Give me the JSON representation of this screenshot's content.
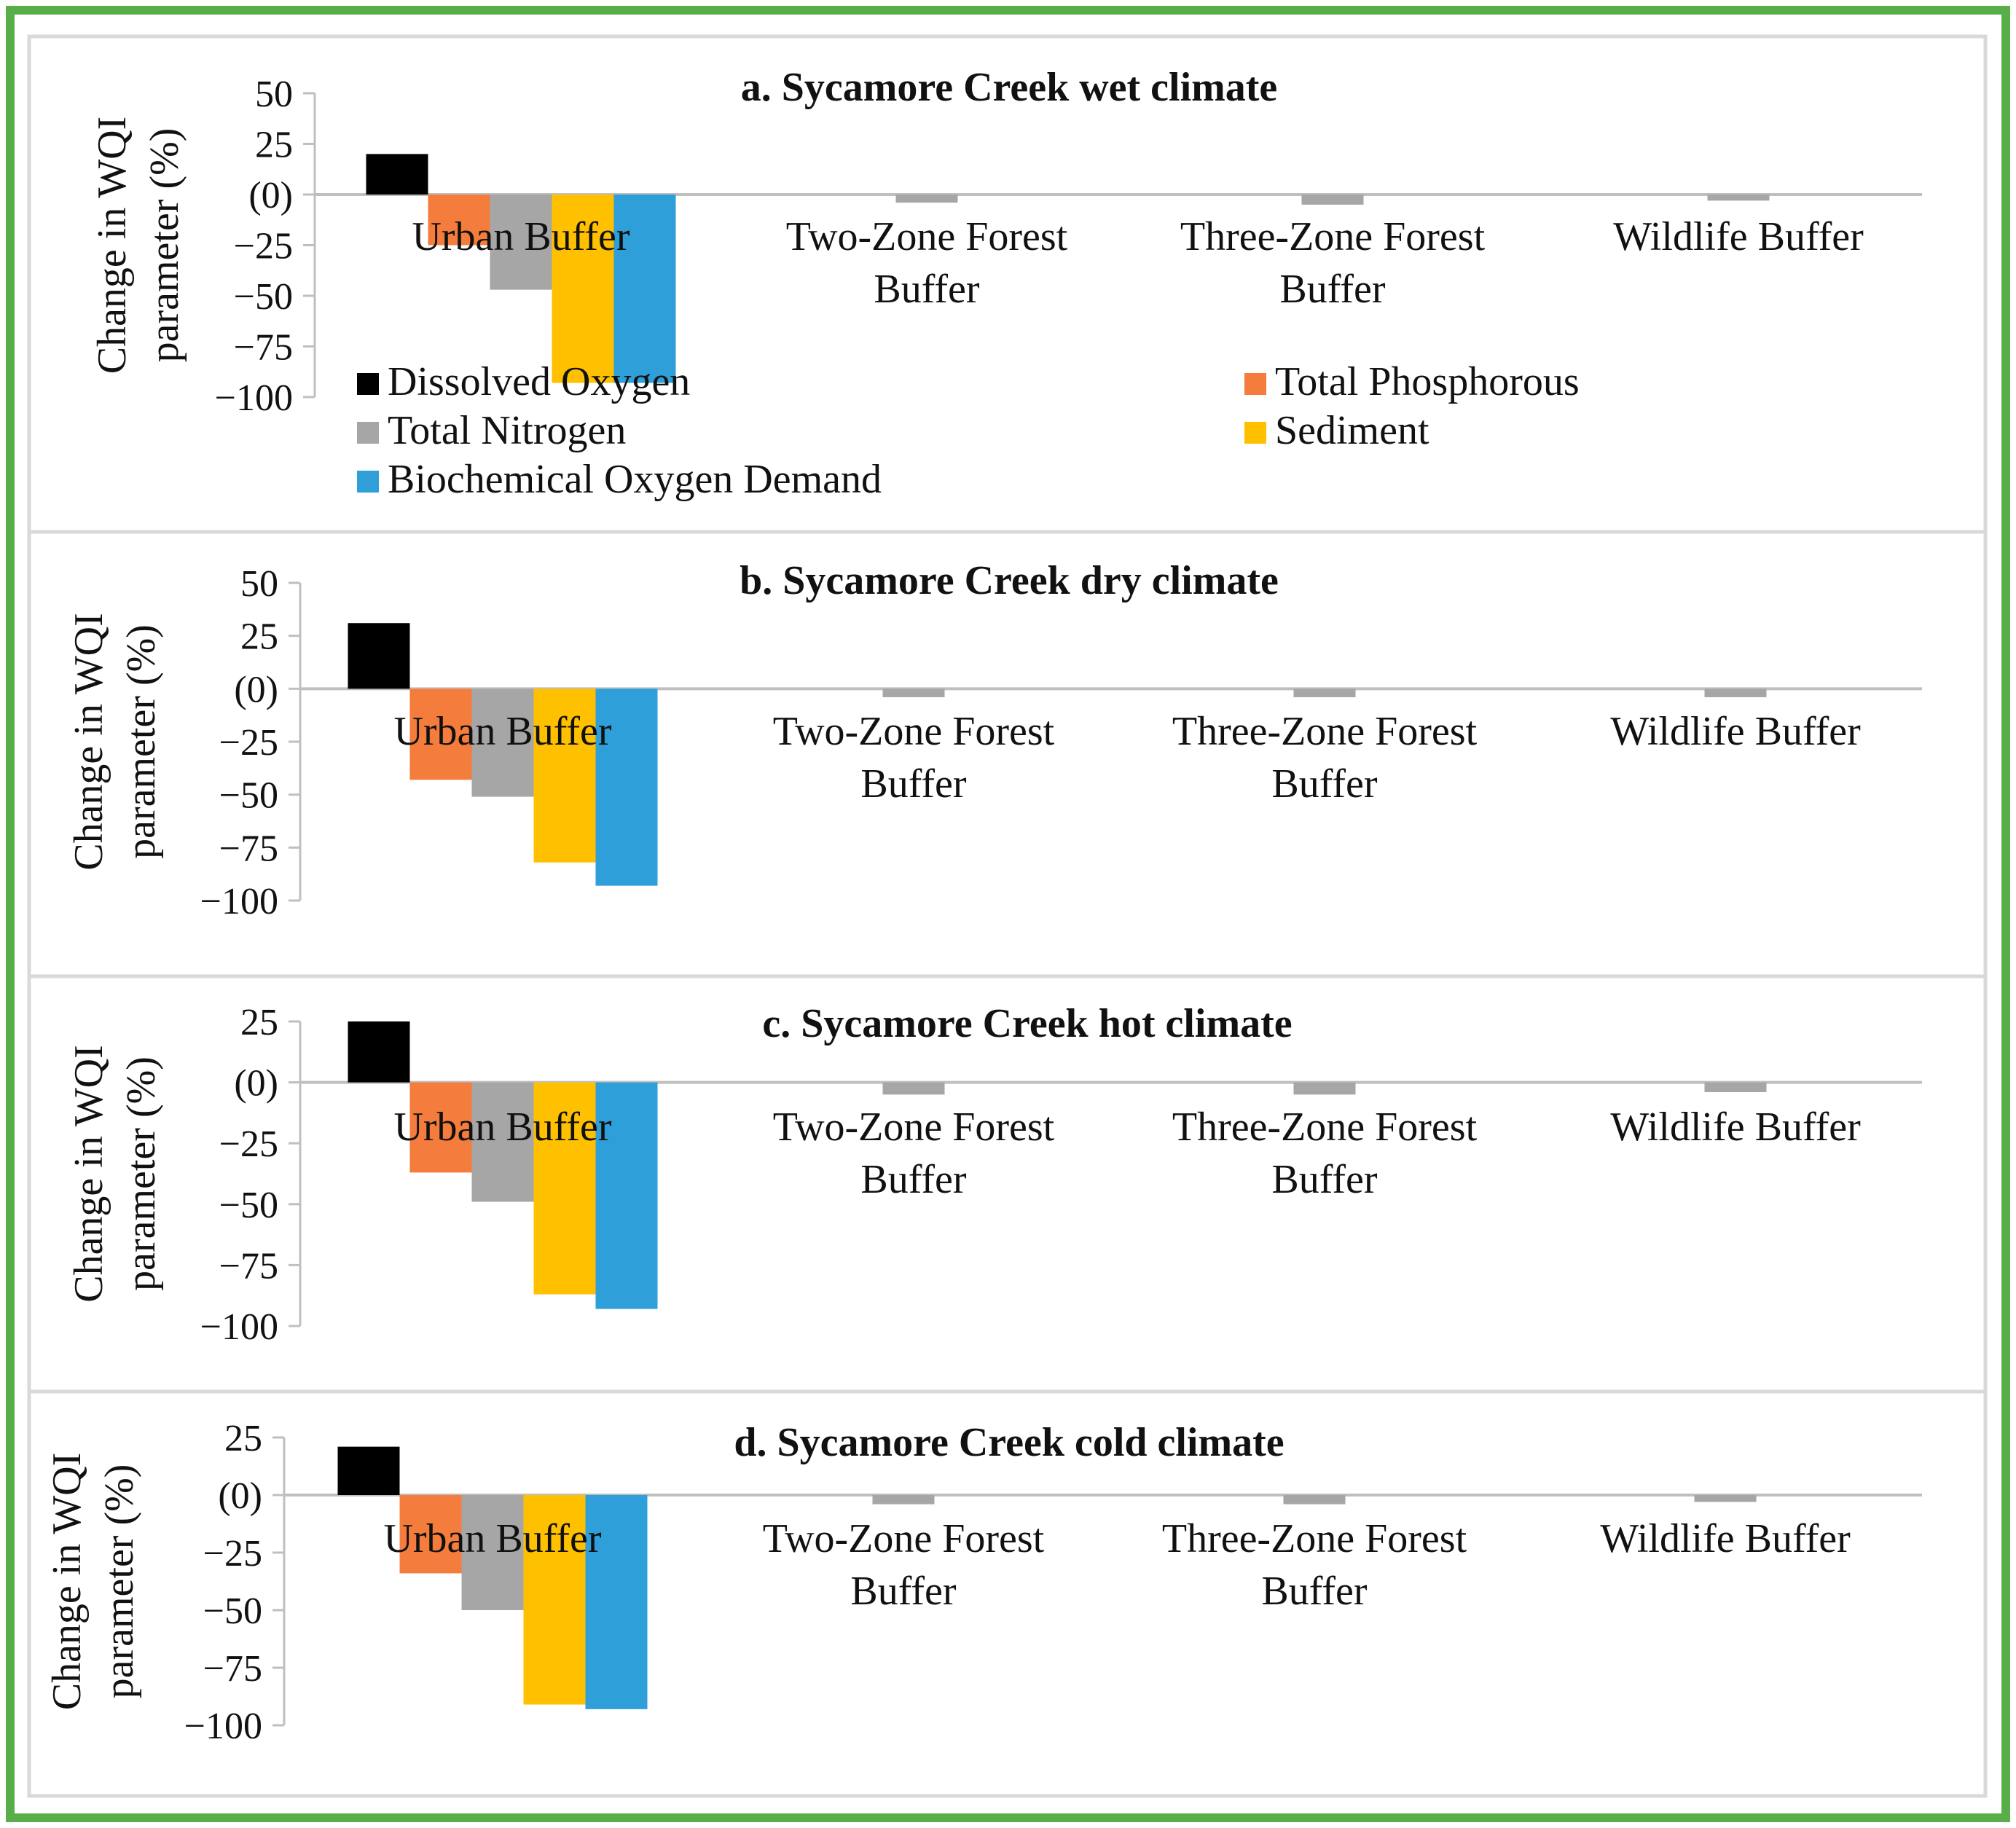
{
  "figure": {
    "border_color": "#5aae4a",
    "panel_border_color": "#d9d9d9",
    "axis_color": "#bfbfbf"
  },
  "legend": [
    {
      "name": "Dissolved Oxygen",
      "color": "#000000"
    },
    {
      "name": "Total Phosphorous",
      "color": "#f47c3c"
    },
    {
      "name": "Total Nitrogen",
      "color": "#a6a6a6"
    },
    {
      "name": "Sediment",
      "color": "#ffc000"
    },
    {
      "name": "Biochemical Oxygen Demand",
      "color": "#2e9fd8"
    }
  ],
  "chart_data": [
    {
      "type": "bar",
      "title": "a. Sycamore Creek wet climate",
      "ylabel": [
        "Change in WQI",
        "parameter (%)"
      ],
      "ylim": [
        -100,
        50
      ],
      "yticks": [
        50,
        25,
        0,
        -25,
        -50,
        -75,
        -100
      ],
      "ytick_labels": [
        "50",
        "25",
        "(0)",
        "−25",
        "−50",
        "−75",
        "−100"
      ],
      "categories": [
        [
          "Urban Buffer"
        ],
        [
          "Two-Zone Forest",
          "Buffer"
        ],
        [
          "Three-Zone Forest",
          "Buffer"
        ],
        [
          "Wildlife Buffer"
        ]
      ],
      "series": [
        {
          "name": "Dissolved Oxygen",
          "values": [
            20,
            0,
            0,
            0
          ]
        },
        {
          "name": "Total Phosphorous",
          "values": [
            -25,
            0,
            0,
            0
          ]
        },
        {
          "name": "Total Nitrogen",
          "values": [
            -47,
            -4,
            -5,
            -3
          ]
        },
        {
          "name": "Sediment",
          "values": [
            -93,
            0,
            0,
            0
          ]
        },
        {
          "name": "Biochemical Oxygen Demand",
          "values": [
            -93,
            0,
            0,
            0
          ]
        }
      ]
    },
    {
      "type": "bar",
      "title": "b. Sycamore Creek dry climate",
      "ylabel": [
        "Change in WQI",
        "parameter (%)"
      ],
      "ylim": [
        -100,
        50
      ],
      "yticks": [
        50,
        25,
        0,
        -25,
        -50,
        -75,
        -100
      ],
      "ytick_labels": [
        "50",
        "25",
        "(0)",
        "−25",
        "−50",
        "−75",
        "−100"
      ],
      "categories": [
        [
          "Urban Buffer"
        ],
        [
          "Two-Zone Forest",
          "Buffer"
        ],
        [
          "Three-Zone Forest",
          "Buffer"
        ],
        [
          "Wildlife Buffer"
        ]
      ],
      "series": [
        {
          "name": "Dissolved Oxygen",
          "values": [
            31,
            0,
            0,
            0
          ]
        },
        {
          "name": "Total Phosphorous",
          "values": [
            -43,
            0,
            0,
            0
          ]
        },
        {
          "name": "Total Nitrogen",
          "values": [
            -51,
            -4,
            -4,
            -4
          ]
        },
        {
          "name": "Sediment",
          "values": [
            -82,
            0,
            0,
            0
          ]
        },
        {
          "name": "Biochemical Oxygen Demand",
          "values": [
            -93,
            0,
            0,
            0
          ]
        }
      ]
    },
    {
      "type": "bar",
      "title": "c. Sycamore Creek hot climate",
      "ylabel": [
        "Change in WQI",
        "parameter (%)"
      ],
      "ylim": [
        -100,
        25
      ],
      "yticks": [
        25,
        0,
        -25,
        -50,
        -75,
        -100
      ],
      "ytick_labels": [
        "25",
        "(0)",
        "−25",
        "−50",
        "−75",
        "−100"
      ],
      "categories": [
        [
          "Urban Buffer"
        ],
        [
          "Two-Zone Forest",
          "Buffer"
        ],
        [
          "Three-Zone Forest",
          "Buffer"
        ],
        [
          "Wildlife Buffer"
        ]
      ],
      "series": [
        {
          "name": "Dissolved Oxygen",
          "values": [
            25,
            0,
            0,
            0
          ]
        },
        {
          "name": "Total Phosphorous",
          "values": [
            -37,
            0,
            0,
            0
          ]
        },
        {
          "name": "Total Nitrogen",
          "values": [
            -49,
            -5,
            -5,
            -4
          ]
        },
        {
          "name": "Sediment",
          "values": [
            -87,
            0,
            0,
            0
          ]
        },
        {
          "name": "Biochemical Oxygen Demand",
          "values": [
            -93,
            0,
            0,
            0
          ]
        }
      ]
    },
    {
      "type": "bar",
      "title": "d. Sycamore Creek cold climate",
      "ylabel": [
        "Change in WQI",
        "parameter (%)"
      ],
      "ylim": [
        -100,
        25
      ],
      "yticks": [
        25,
        0,
        -25,
        -50,
        -75,
        -100
      ],
      "ytick_labels": [
        "25",
        "(0)",
        "−25",
        "−50",
        "−75",
        "−100"
      ],
      "categories": [
        [
          "Urban Buffer"
        ],
        [
          "Two-Zone Forest",
          "Buffer"
        ],
        [
          "Three-Zone Forest",
          "Buffer"
        ],
        [
          "Wildlife Buffer"
        ]
      ],
      "series": [
        {
          "name": "Dissolved Oxygen",
          "values": [
            21,
            0,
            0,
            0
          ]
        },
        {
          "name": "Total Phosphorous",
          "values": [
            -34,
            0,
            0,
            0
          ]
        },
        {
          "name": "Total Nitrogen",
          "values": [
            -50,
            -4,
            -4,
            -3
          ]
        },
        {
          "name": "Sediment",
          "values": [
            -91,
            0,
            0,
            0
          ]
        },
        {
          "name": "Biochemical Oxygen Demand",
          "values": [
            -93,
            0,
            0,
            0
          ]
        }
      ]
    }
  ]
}
